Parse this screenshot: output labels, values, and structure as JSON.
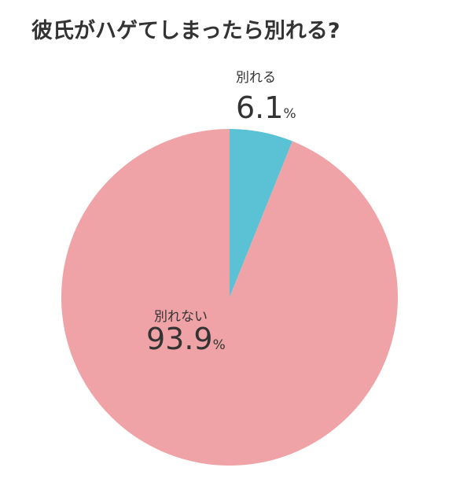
{
  "chart_data": {
    "type": "pie",
    "title": "彼氏がハゲてしまったら別れる?",
    "categories": [
      "別れる",
      "別れない"
    ],
    "values": [
      6.1,
      93.9
    ],
    "unit": "%",
    "colors": [
      "#5bc2d6",
      "#f0a3a6"
    ]
  }
}
